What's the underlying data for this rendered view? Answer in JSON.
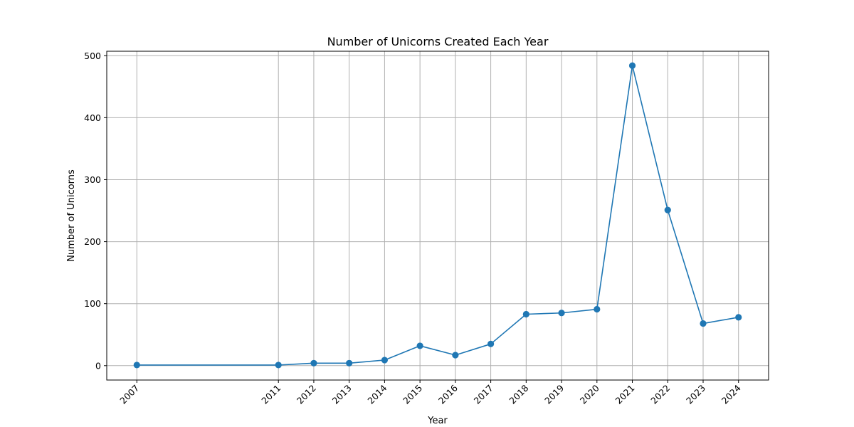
{
  "chart_data": {
    "type": "line",
    "title": "Number of Unicorns Created Each Year",
    "xlabel": "Year",
    "ylabel": "Number of Unicorns",
    "x": [
      2007,
      2011,
      2012,
      2013,
      2014,
      2015,
      2016,
      2017,
      2018,
      2019,
      2020,
      2021,
      2022,
      2023,
      2024
    ],
    "x_tick_labels": [
      "2007",
      "2011",
      "2012",
      "2013",
      "2014",
      "2015",
      "2016",
      "2017",
      "2018",
      "2019",
      "2020",
      "2021",
      "2022",
      "2023",
      "2024"
    ],
    "series": [
      {
        "values": [
          1,
          1,
          4,
          4,
          9,
          32,
          17,
          35,
          83,
          85,
          91,
          484,
          251,
          68,
          78
        ],
        "color": "#1f77b4"
      }
    ],
    "xlim": [
      2006.15,
      2024.85
    ],
    "ylim": [
      -23.2,
      507.2
    ],
    "y_ticks": [
      0,
      100,
      200,
      300,
      400,
      500
    ],
    "x_tick_rotation": 45,
    "grid": true,
    "legend": false,
    "marker": "circle"
  }
}
